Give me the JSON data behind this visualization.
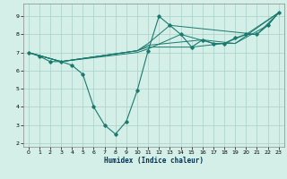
{
  "xlabel": "Humidex (Indice chaleur)",
  "xlim": [
    -0.5,
    23.5
  ],
  "ylim": [
    1.8,
    9.7
  ],
  "yticks": [
    2,
    3,
    4,
    5,
    6,
    7,
    8,
    9
  ],
  "xticks": [
    0,
    1,
    2,
    3,
    4,
    5,
    6,
    7,
    8,
    9,
    10,
    11,
    12,
    13,
    14,
    15,
    16,
    17,
    18,
    19,
    20,
    21,
    22,
    23
  ],
  "background_color": "#d4eee8",
  "grid_color": "#b0d4cc",
  "line_color": "#1a7a6e",
  "lines": [
    {
      "x": [
        0,
        1,
        2,
        3,
        4,
        5,
        6,
        7,
        8,
        9,
        10,
        11,
        12,
        13,
        14,
        15,
        16,
        17,
        18,
        19,
        20,
        21,
        22,
        23
      ],
      "y": [
        7.0,
        6.8,
        6.5,
        6.5,
        6.3,
        5.8,
        4.0,
        3.0,
        2.5,
        3.2,
        4.9,
        7.1,
        9.0,
        8.5,
        8.0,
        7.3,
        7.7,
        7.5,
        7.5,
        7.8,
        8.0,
        8.0,
        8.5,
        9.2
      ],
      "has_markers": true
    },
    {
      "x": [
        0,
        3,
        10,
        11,
        14,
        17,
        19,
        23
      ],
      "y": [
        7.0,
        6.5,
        7.0,
        7.2,
        8.0,
        7.5,
        7.5,
        9.2
      ],
      "has_markers": false
    },
    {
      "x": [
        0,
        3,
        10,
        11,
        15,
        18,
        20,
        23
      ],
      "y": [
        7.0,
        6.5,
        7.1,
        7.3,
        7.3,
        7.5,
        8.0,
        9.2
      ],
      "has_markers": false
    },
    {
      "x": [
        0,
        3,
        10,
        11,
        16,
        19,
        22,
        23
      ],
      "y": [
        7.0,
        6.5,
        7.1,
        7.4,
        7.7,
        7.5,
        8.5,
        9.2
      ],
      "has_markers": false
    },
    {
      "x": [
        0,
        3,
        10,
        11,
        13,
        21,
        23
      ],
      "y": [
        7.0,
        6.5,
        7.1,
        7.5,
        8.5,
        8.0,
        9.2
      ],
      "has_markers": false
    }
  ]
}
